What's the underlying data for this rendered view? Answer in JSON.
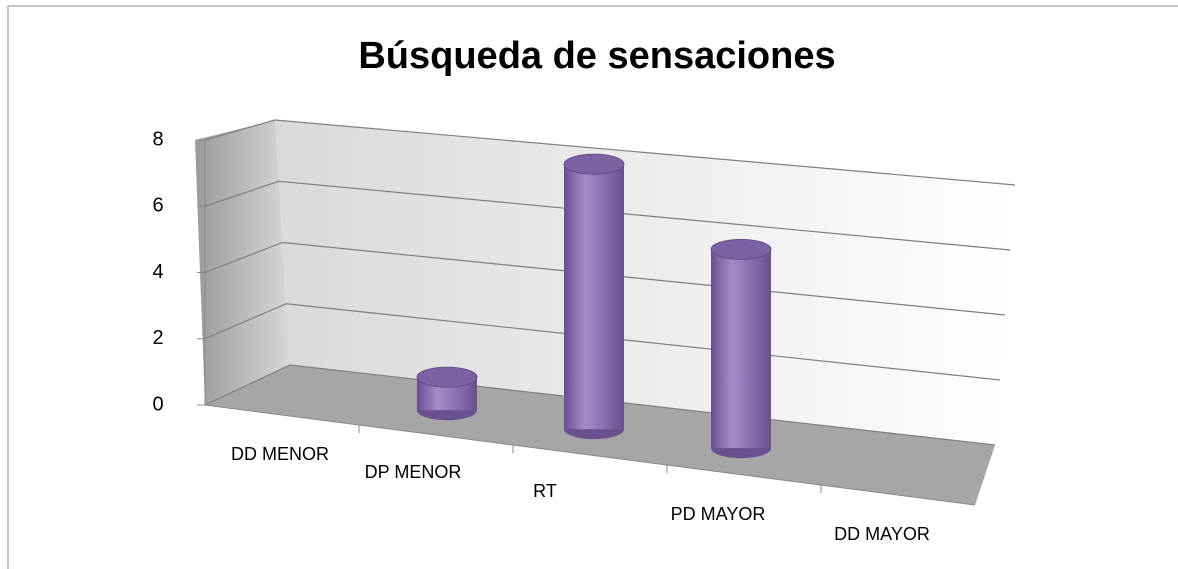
{
  "chart_data": {
    "type": "bar3d",
    "title": "Búsqueda de sensaciones",
    "categories": [
      "DD MENOR",
      "DP MENOR",
      "RT",
      "PD MAYOR",
      "DD MAYOR"
    ],
    "values": [
      0,
      1,
      8,
      6,
      0
    ],
    "color": "#8064a2",
    "ylim": [
      0,
      8
    ],
    "yticks": [
      0,
      2,
      4,
      6,
      8
    ],
    "grid": true
  }
}
